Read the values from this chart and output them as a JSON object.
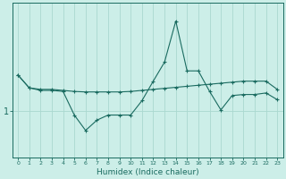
{
  "xlabel": "Humidex (Indice chaleur)",
  "bg_color": "#cceee8",
  "line_color": "#1a6b60",
  "grid_color": "#aad8d0",
  "ytick_label": "1",
  "x_values": [
    0,
    1,
    2,
    3,
    4,
    5,
    6,
    7,
    8,
    9,
    10,
    11,
    12,
    13,
    14,
    15,
    16,
    17,
    18,
    19,
    20,
    21,
    22,
    23
  ],
  "line1": [
    1.7,
    1.45,
    1.42,
    1.42,
    1.4,
    1.38,
    1.37,
    1.37,
    1.37,
    1.37,
    1.38,
    1.4,
    1.42,
    1.44,
    1.46,
    1.48,
    1.5,
    1.52,
    1.54,
    1.56,
    1.58,
    1.58,
    1.58,
    1.42
  ],
  "line2": [
    1.7,
    1.45,
    1.4,
    1.4,
    1.38,
    0.92,
    0.62,
    0.82,
    0.92,
    0.92,
    0.92,
    1.2,
    1.58,
    1.95,
    2.75,
    1.78,
    1.78,
    1.38,
    1.02,
    1.3,
    1.32,
    1.32,
    1.35,
    1.22
  ],
  "ylim": [
    0.1,
    3.1
  ],
  "yticks": [
    1.0
  ],
  "xlim": [
    -0.5,
    23.5
  ],
  "figsize": [
    3.2,
    2.0
  ],
  "dpi": 100
}
